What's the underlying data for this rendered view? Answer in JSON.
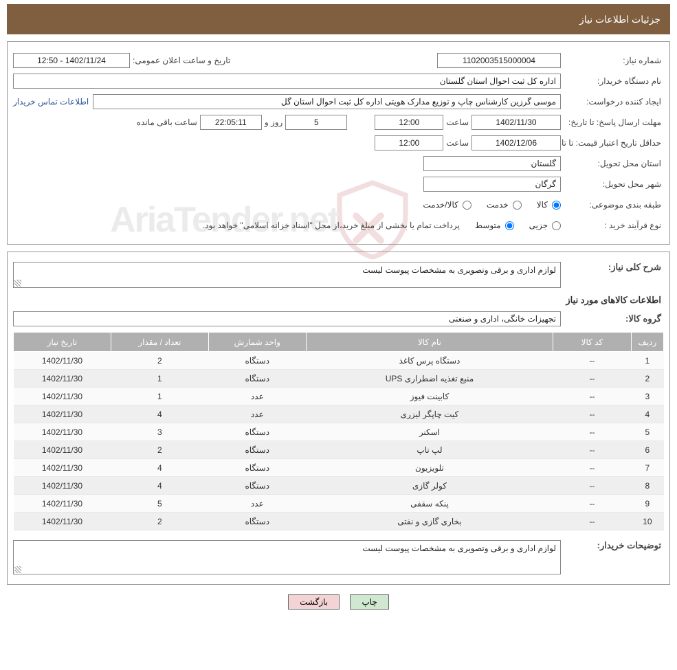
{
  "titleBar": "جزئیات اطلاعات نیاز",
  "labels": {
    "need_no": "شماره نیاز:",
    "announce_dt": "تاریخ و ساعت اعلان عمومی:",
    "buyer_org": "نام دستگاه خریدار:",
    "requester": "ایجاد کننده درخواست:",
    "buyer_contact": "اطلاعات تماس خریدار",
    "reply_deadline": "مهلت ارسال پاسخ:",
    "until_date": "تا تاریخ:",
    "validity": "حداقل تاریخ اعتبار قیمت:",
    "hour": "ساعت",
    "days_and": "روز و",
    "hours_left": "ساعت باقی مانده",
    "delivery_prov": "استان محل تحویل:",
    "delivery_city": "شهر محل تحویل:",
    "category": "طبقه بندی موضوعی:",
    "cat_goods": "کالا",
    "cat_service": "خدمت",
    "cat_both": "کالا/خدمت",
    "process_type": "نوع فرآیند خرید :",
    "proc_partial": "جزیی",
    "proc_medium": "متوسط",
    "proc_note": "پرداخت تمام یا بخشی از مبلغ خرید،از محل \"اسناد خزانه اسلامی\" خواهد بود.",
    "desc_main": "شرح کلی نیاز:",
    "items_header": "اطلاعات کالاهای مورد نیاز",
    "group": "گروه کالا:",
    "buyer_notes": "توضیحات خریدار:",
    "btn_print": "چاپ",
    "btn_back": "بازگشت"
  },
  "values": {
    "need_no": "1102003515000004",
    "announce_dt": "1402/11/24 - 12:50",
    "buyer_org": "اداره کل ثبت احوال استان گلستان",
    "requester": "موسی گرزین کارشناس چاپ و توزیع مدارک هویتی اداره کل ثبت احوال استان گل",
    "reply_date": "1402/11/30",
    "reply_hour": "12:00",
    "days_left": "5",
    "countdown": "22:05:11",
    "validity_date": "1402/12/06",
    "validity_hour": "12:00",
    "province": "گلستان",
    "city": "گرگان",
    "description": "لوازم اداری و برقی وتصویری به مشخصات پیوست لیست",
    "group": "تجهیزات خانگی، اداری و صنعتی",
    "buyer_notes": "لوازم اداری و برقی وتصویری به مشخصات پیوست لیست"
  },
  "table": {
    "columns": [
      "ردیف",
      "کد کالا",
      "نام کالا",
      "واحد شمارش",
      "تعداد / مقدار",
      "تاریخ نیاز"
    ],
    "rows": [
      {
        "idx": "1",
        "code": "--",
        "name": "دستگاه پرس کاغذ",
        "unit": "دستگاه",
        "qty": "2",
        "date": "1402/11/30"
      },
      {
        "idx": "2",
        "code": "--",
        "name": "منبع تغذیه اضطراری UPS",
        "unit": "دستگاه",
        "qty": "1",
        "date": "1402/11/30"
      },
      {
        "idx": "3",
        "code": "--",
        "name": "کابینت فیوز",
        "unit": "عدد",
        "qty": "1",
        "date": "1402/11/30"
      },
      {
        "idx": "4",
        "code": "--",
        "name": "کیت چاپگر لیزری",
        "unit": "عدد",
        "qty": "4",
        "date": "1402/11/30"
      },
      {
        "idx": "5",
        "code": "--",
        "name": "اسکنر",
        "unit": "دستگاه",
        "qty": "3",
        "date": "1402/11/30"
      },
      {
        "idx": "6",
        "code": "--",
        "name": "لپ تاپ",
        "unit": "دستگاه",
        "qty": "2",
        "date": "1402/11/30"
      },
      {
        "idx": "7",
        "code": "--",
        "name": "تلویزیون",
        "unit": "دستگاه",
        "qty": "4",
        "date": "1402/11/30"
      },
      {
        "idx": "8",
        "code": "--",
        "name": "کولر گازی",
        "unit": "دستگاه",
        "qty": "4",
        "date": "1402/11/30"
      },
      {
        "idx": "9",
        "code": "--",
        "name": "پنکه سقفی",
        "unit": "عدد",
        "qty": "5",
        "date": "1402/11/30"
      },
      {
        "idx": "10",
        "code": "--",
        "name": "بخاری گازی و نفتی",
        "unit": "دستگاه",
        "qty": "2",
        "date": "1402/11/30"
      }
    ]
  },
  "watermark": "AriaTender.net",
  "colors": {
    "title_bg": "#7f5f3f",
    "title_fg": "#ffffff",
    "border": "#999999",
    "field_border": "#888888",
    "th_bg": "#b0b0b0",
    "th_fg": "#ffffff",
    "row_odd": "#fafafa",
    "row_even": "#efefef",
    "link": "#2b5797",
    "btn_print_bg": "#cfe8cf",
    "btn_back_bg": "#f3d3d3",
    "watermark_stroke": "#b33a3a"
  }
}
